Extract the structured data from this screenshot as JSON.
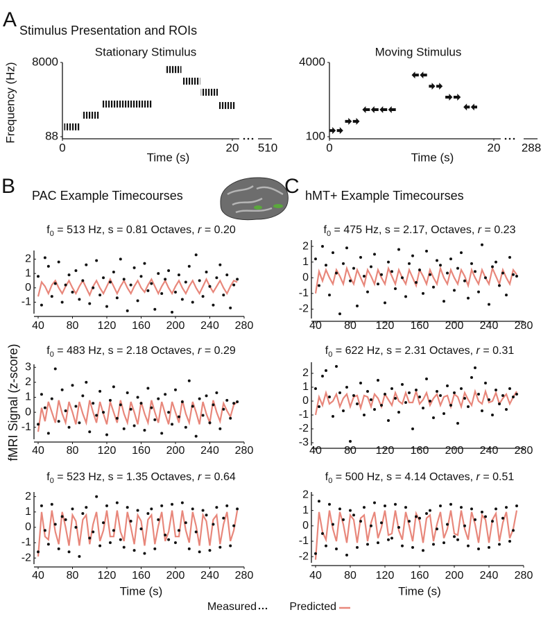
{
  "figure": {
    "panels": [
      {
        "letter": "A",
        "title": "Stimulus Presentation and ROIs"
      },
      {
        "letter": "B",
        "title": "PAC Example Timecourses"
      },
      {
        "letter": "C",
        "title": "hMT+ Example Timecourses"
      }
    ],
    "ylabel": "fMRI Signal (z-score)",
    "legend": [
      {
        "name": "Measured",
        "color": "#111111"
      },
      {
        "name": "Predicted",
        "color": "#e8877b"
      }
    ]
  },
  "chart_data": [
    {
      "type": "stimulus",
      "title": "Stationary Stimulus",
      "ylabel": "Frequency (Hz)",
      "xlabel": "Time (s)",
      "log_y": true,
      "ylim": [
        88,
        8000
      ],
      "yticks": [
        88,
        8000
      ],
      "xlim": [
        0,
        20
      ],
      "xticks": [
        0,
        20
      ],
      "break_tick": 510,
      "marker": "bars",
      "start": [
        0.2,
        2.3,
        4.6,
        12.1,
        14.2,
        16.3,
        18.4
      ],
      "end": [
        2.0,
        4.3,
        10.6,
        14.0,
        16.2,
        18.3,
        20.4
      ],
      "values": [
        160,
        325,
        640,
        5200,
        2570,
        1310,
        585
      ]
    },
    {
      "type": "stimulus",
      "title": "Moving Stimulus",
      "xlabel": "Time (s)",
      "log_y": true,
      "ylim": [
        100,
        4000
      ],
      "yticks": [
        100,
        4000
      ],
      "xlim": [
        0,
        20
      ],
      "xticks": [
        0,
        20
      ],
      "break_tick": 288,
      "marker": "arrows",
      "start": [
        0,
        1.9,
        4.0,
        10.0,
        12.1,
        14.1,
        16.3
      ],
      "end": [
        1.8,
        3.8,
        8.2,
        12.0,
        13.9,
        16.1,
        18.1
      ],
      "values": [
        136,
        214,
        384,
        2140,
        1230,
        715,
        437
      ],
      "direction": [
        "right",
        "right",
        "left",
        "left",
        "right",
        "right",
        "left"
      ]
    },
    {
      "type": "timecourse",
      "title": "f0 = 513 Hz, s = 0.81 Octaves, r = 0.20",
      "xlim": [
        40,
        280
      ],
      "xticks": [
        40,
        80,
        120,
        160,
        200,
        240,
        280
      ],
      "ylim": [
        -1.8,
        2.6
      ],
      "yticks": [
        -1,
        0,
        1,
        2
      ],
      "x": [
        40,
        44,
        48,
        52,
        56,
        60,
        64,
        68,
        72,
        76,
        80,
        84,
        88,
        92,
        96,
        100,
        104,
        108,
        112,
        116,
        120,
        124,
        128,
        132,
        136,
        140,
        144,
        148,
        152,
        156,
        160,
        164,
        168,
        172,
        176,
        180,
        184,
        188,
        192,
        196,
        200,
        204,
        208,
        212,
        216,
        220,
        224,
        228,
        232,
        236,
        240,
        244,
        248,
        252,
        256,
        260,
        264,
        268,
        272
      ],
      "measured": [
        0.8,
        -1.2,
        2.1,
        1.5,
        -0.6,
        0.3,
        1.8,
        -1.0,
        0.2,
        0.9,
        -0.3,
        1.2,
        -0.8,
        0.5,
        1.6,
        -1.1,
        0.0,
        1.9,
        -0.5,
        0.7,
        -1.3,
        0.4,
        1.1,
        -0.7,
        2.0,
        0.6,
        -1.6,
        0.2,
        1.4,
        -0.9,
        0.8,
        1.7,
        -0.2,
        0.3,
        -1.5,
        1.0,
        -0.4,
        0.6,
        1.2,
        -1.7,
        -0.3,
        0.9,
        -0.8,
        0.4,
        1.5,
        -1.0,
        2.3,
        0.5,
        -0.6,
        1.1,
        0.1,
        -1.2,
        0.7,
        1.6,
        -0.5,
        0.9,
        -1.4,
        0.2,
        0.6
      ],
      "predicted": [
        -0.6,
        0.4,
        0.1,
        -0.4,
        0.2,
        0.5,
        0.0,
        -0.4,
        0.1,
        0.5,
        0.0,
        -0.4,
        0.1,
        0.5,
        0.0,
        -0.5,
        0.1,
        0.5,
        0.0,
        -0.4,
        0.1,
        0.6,
        0.1,
        -0.4,
        0.1,
        0.5,
        0.0,
        -0.4,
        0.1,
        0.5,
        0.0,
        -0.3,
        0.2,
        0.6,
        0.1,
        -0.4,
        0.1,
        0.5,
        0.0,
        -0.4,
        0.1,
        0.5,
        0.0,
        -0.4,
        0.1,
        0.5,
        0.0,
        -0.4,
        0.1,
        0.6,
        0.1,
        -0.3,
        0.1,
        0.5,
        0.0,
        -0.4,
        0.1,
        0.5,
        0.4
      ]
    },
    {
      "type": "timecourse",
      "title": "f0 = 475 Hz, s = 2.17, Octaves, r = 0.23",
      "xlim": [
        40,
        280
      ],
      "xticks": [
        40,
        80,
        120,
        160,
        200,
        240,
        280
      ],
      "ylim": [
        -2.6,
        2.4
      ],
      "yticks": [
        -2,
        -1,
        0,
        1,
        2
      ],
      "x": [
        40,
        44,
        48,
        52,
        56,
        60,
        64,
        68,
        72,
        76,
        80,
        84,
        88,
        92,
        96,
        100,
        104,
        108,
        112,
        116,
        120,
        124,
        128,
        132,
        136,
        140,
        144,
        148,
        152,
        156,
        160,
        164,
        168,
        172,
        176,
        180,
        184,
        188,
        192,
        196,
        200,
        204,
        208,
        212,
        216,
        220,
        224,
        228,
        232,
        236,
        240,
        244,
        248,
        252,
        256,
        260,
        264,
        268,
        272
      ],
      "measured": [
        1.2,
        -0.5,
        2.0,
        0.8,
        -1.1,
        1.6,
        0.3,
        -2.3,
        0.9,
        1.9,
        -0.2,
        0.6,
        -1.8,
        1.3,
        0.1,
        -0.9,
        0.7,
        1.5,
        -0.4,
        0.2,
        -1.6,
        1.0,
        0.4,
        -0.7,
        1.8,
        0.0,
        -1.2,
        0.9,
        1.4,
        -0.3,
        0.5,
        -1.0,
        1.7,
        0.2,
        -0.6,
        1.1,
        0.8,
        -1.5,
        0.3,
        1.2,
        -0.8,
        0.6,
        1.6,
        -0.2,
        -1.3,
        0.9,
        0.4,
        -0.9,
        2.1,
        0.0,
        -1.7,
        0.7,
        1.0,
        -0.5,
        0.3,
        -1.1,
        1.3,
        0.2,
        0.1
      ],
      "predicted": [
        -1.0,
        0.4,
        -0.2,
        0.5,
        0.0,
        -0.4,
        0.5,
        0.1,
        -0.4,
        0.6,
        0.0,
        -0.4,
        0.5,
        0.0,
        -0.5,
        0.5,
        0.1,
        -0.4,
        0.5,
        0.0,
        -0.4,
        0.6,
        0.1,
        -0.4,
        0.5,
        0.0,
        -0.4,
        0.5,
        0.0,
        -0.5,
        0.5,
        0.1,
        -0.4,
        0.5,
        0.0,
        -0.4,
        0.6,
        0.0,
        -0.4,
        0.5,
        0.0,
        -0.4,
        0.5,
        0.1,
        -0.5,
        0.5,
        0.0,
        -0.4,
        0.5,
        0.0,
        -0.4,
        0.6,
        0.1,
        -0.4,
        0.5,
        0.0,
        -0.4,
        0.5,
        0.2
      ]
    },
    {
      "type": "timecourse",
      "title": "f0 = 483 Hz, s = 2.18 Octaves, r = 0.29",
      "xlim": [
        40,
        280
      ],
      "xticks": [
        40,
        80,
        120,
        160,
        200,
        240,
        280
      ],
      "ylim": [
        -1.8,
        3.2
      ],
      "yticks": [
        -1,
        0,
        1,
        2,
        3
      ],
      "x": [
        40,
        44,
        48,
        52,
        56,
        60,
        64,
        68,
        72,
        76,
        80,
        84,
        88,
        92,
        96,
        100,
        104,
        108,
        112,
        116,
        120,
        124,
        128,
        132,
        136,
        140,
        144,
        148,
        152,
        156,
        160,
        164,
        168,
        172,
        176,
        180,
        184,
        188,
        192,
        196,
        200,
        204,
        208,
        212,
        216,
        220,
        224,
        228,
        232,
        236,
        240,
        244,
        248,
        252,
        256,
        260,
        264,
        268,
        272
      ],
      "measured": [
        -0.8,
        1.2,
        0.3,
        -1.4,
        0.9,
        2.9,
        -0.6,
        1.5,
        0.1,
        -1.0,
        1.8,
        0.4,
        -0.7,
        1.1,
        2.0,
        -1.3,
        0.6,
        -0.2,
        1.4,
        0.0,
        -1.5,
        0.8,
        1.7,
        -0.4,
        0.5,
        -1.1,
        1.3,
        0.2,
        -0.9,
        1.0,
        0.6,
        -1.2,
        1.6,
        0.3,
        -0.5,
        0.9,
        -1.4,
        1.2,
        0.0,
        -0.8,
        1.5,
        -0.3,
        0.7,
        -1.0,
        2.1,
        0.4,
        -1.6,
        0.9,
        -0.2,
        1.1,
        -0.7,
        0.5,
        1.3,
        -1.1,
        0.2,
        0.8,
        -0.4,
        0.6,
        0.7
      ],
      "predicted": [
        -1.3,
        0.3,
        -0.6,
        0.7,
        0.0,
        -0.7,
        0.8,
        -0.1,
        -0.7,
        0.7,
        0.0,
        -0.8,
        0.7,
        -0.1,
        -0.7,
        0.8,
        0.0,
        -0.7,
        0.7,
        -0.1,
        -0.8,
        0.7,
        0.0,
        -0.7,
        0.8,
        -0.1,
        -0.7,
        0.7,
        0.0,
        -0.8,
        0.7,
        -0.1,
        -0.7,
        0.8,
        0.0,
        -0.7,
        0.7,
        -0.1,
        -0.8,
        0.7,
        0.0,
        -0.7,
        0.8,
        -0.1,
        -0.7,
        0.7,
        0.0,
        -0.8,
        0.7,
        -0.1,
        -0.7,
        0.8,
        0.0,
        -0.6,
        0.6,
        0.1,
        -0.3,
        0.5,
        0.7
      ]
    },
    {
      "type": "timecourse",
      "title": "f0 = 622 Hz, s = 2.31 Octaves, r = 0.31",
      "xlim": [
        40,
        280
      ],
      "xticks": [
        40,
        80,
        120,
        160,
        200,
        240,
        280
      ],
      "ylim": [
        -3.2,
        2.8
      ],
      "yticks": [
        -3,
        -2,
        -1,
        0,
        1,
        2
      ],
      "x": [
        40,
        44,
        48,
        52,
        56,
        60,
        64,
        68,
        72,
        76,
        80,
        84,
        88,
        92,
        96,
        100,
        104,
        108,
        112,
        116,
        120,
        124,
        128,
        132,
        136,
        140,
        144,
        148,
        152,
        156,
        160,
        164,
        168,
        172,
        176,
        180,
        184,
        188,
        192,
        196,
        200,
        204,
        208,
        212,
        216,
        220,
        224,
        228,
        232,
        236,
        240,
        244,
        248,
        252,
        256,
        260,
        264,
        268,
        272
      ],
      "measured": [
        0.9,
        -0.4,
        1.8,
        2.2,
        0.3,
        -1.1,
        2.5,
        0.6,
        -0.7,
        1.0,
        -2.9,
        0.4,
        -0.2,
        1.3,
        -1.0,
        0.7,
        0.1,
        -0.6,
        1.5,
        -0.3,
        0.5,
        -1.4,
        0.9,
        0.2,
        -0.8,
        1.2,
        -0.1,
        0.6,
        -2.0,
        0.8,
        0.3,
        -0.5,
        1.6,
        0.0,
        -1.2,
        0.7,
        0.4,
        -0.9,
        1.1,
        -0.3,
        0.6,
        -1.6,
        0.9,
        0.2,
        -0.4,
        1.7,
        2.4,
        0.5,
        -0.7,
        1.3,
        0.1,
        -1.0,
        0.8,
        -0.2,
        0.4,
        -0.6,
        0.9,
        0.3,
        0.5
      ],
      "predicted": [
        -1.0,
        0.3,
        -0.3,
        0.6,
        -0.2,
        0.0,
        0.5,
        -0.4,
        0.2,
        0.5,
        -0.4,
        0.3,
        0.4,
        -0.5,
        0.4,
        0.3,
        -0.4,
        0.5,
        0.2,
        -0.4,
        0.5,
        0.1,
        -0.3,
        0.6,
        0.0,
        -0.2,
        0.6,
        -0.1,
        -0.1,
        0.7,
        -0.2,
        0.1,
        0.6,
        -0.3,
        0.2,
        0.5,
        -0.3,
        0.3,
        0.4,
        -0.4,
        0.5,
        0.3,
        -0.4,
        0.6,
        0.1,
        -0.3,
        0.7,
        0.0,
        -0.2,
        0.7,
        -0.1,
        0.0,
        0.6,
        -0.2,
        0.2,
        0.5,
        -0.2,
        0.3,
        0.7
      ]
    },
    {
      "type": "timecourse",
      "title": "f0 = 523 Hz, s = 1.35 Octaves, r = 0.64",
      "xlabel": "Time (s)",
      "xlim": [
        40,
        280
      ],
      "xticks": [
        40,
        80,
        120,
        160,
        200,
        240,
        280
      ],
      "ylim": [
        -2.4,
        2.3
      ],
      "yticks": [
        -2,
        -1,
        0,
        1,
        2
      ],
      "x": [
        40,
        44,
        48,
        52,
        56,
        60,
        64,
        68,
        72,
        76,
        80,
        84,
        88,
        92,
        96,
        100,
        104,
        108,
        112,
        116,
        120,
        124,
        128,
        132,
        136,
        140,
        144,
        148,
        152,
        156,
        160,
        164,
        168,
        172,
        176,
        180,
        184,
        188,
        192,
        196,
        200,
        204,
        208,
        212,
        216,
        220,
        224,
        228,
        232,
        236,
        240,
        244,
        248,
        252,
        256,
        260,
        264,
        268,
        272
      ],
      "measured": [
        -1.6,
        1.4,
        -0.2,
        -1.1,
        1.5,
        0.2,
        -1.4,
        0.7,
        0.5,
        -1.6,
        1.2,
        0.0,
        -1.9,
        0.9,
        1.3,
        -0.7,
        -0.3,
        2.0,
        -1.2,
        0.3,
        1.4,
        -1.0,
        -0.2,
        1.6,
        -0.8,
        -1.3,
        1.3,
        0.4,
        -1.5,
        1.1,
        -0.1,
        -1.7,
        0.9,
        1.2,
        -1.4,
        0.5,
        1.4,
        -0.5,
        -0.8,
        1.5,
        -1.0,
        -0.2,
        1.6,
        0.3,
        -1.4,
        1.2,
        -0.3,
        -1.6,
        1.1,
        0.8,
        -1.5,
        0.2,
        1.3,
        -1.3,
        0.6,
        1.4,
        -1.2,
        0.1,
        1.2
      ],
      "predicted": [
        -1.9,
        1.0,
        -0.6,
        -0.8,
        1.1,
        -0.3,
        -1.1,
        1.0,
        0.0,
        -1.2,
        0.8,
        0.4,
        -1.2,
        0.5,
        0.8,
        -1.1,
        0.2,
        1.0,
        -0.9,
        -0.2,
        1.1,
        -0.6,
        -0.6,
        1.1,
        -0.3,
        -0.9,
        1.0,
        0.0,
        -1.1,
        0.8,
        0.4,
        -1.2,
        0.5,
        0.8,
        -1.1,
        0.1,
        1.0,
        -0.9,
        -0.3,
        1.1,
        -0.6,
        -0.6,
        1.1,
        -0.2,
        -1.0,
        1.0,
        0.1,
        -1.2,
        0.8,
        0.4,
        -1.2,
        0.5,
        0.8,
        -1.1,
        0.2,
        1.0,
        -0.9,
        -0.2,
        1.1
      ]
    },
    {
      "type": "timecourse",
      "title": "f0 = 500 Hz, s = 4.14 Octaves, r = 0.51",
      "xlabel": "Time (s)",
      "xlim": [
        40,
        280
      ],
      "xticks": [
        40,
        80,
        120,
        160,
        200,
        240,
        280
      ],
      "ylim": [
        -2.4,
        2.2
      ],
      "yticks": [
        -2,
        -1,
        0,
        1,
        2
      ],
      "x": [
        40,
        44,
        48,
        52,
        56,
        60,
        64,
        68,
        72,
        76,
        80,
        84,
        88,
        92,
        96,
        100,
        104,
        108,
        112,
        116,
        120,
        124,
        128,
        132,
        136,
        140,
        144,
        148,
        152,
        156,
        160,
        164,
        168,
        172,
        176,
        180,
        184,
        188,
        192,
        196,
        200,
        204,
        208,
        212,
        216,
        220,
        224,
        228,
        232,
        236,
        240,
        244,
        248,
        252,
        256,
        260,
        264,
        268,
        272
      ],
      "measured": [
        -1.8,
        1.6,
        -0.5,
        -1.3,
        1.4,
        0.1,
        -1.5,
        1.1,
        0.4,
        -1.9,
        1.0,
        0.7,
        -1.4,
        0.3,
        1.2,
        -1.2,
        0.0,
        1.5,
        -1.1,
        0.2,
        1.3,
        -0.9,
        -0.8,
        1.4,
        -0.1,
        -1.3,
        1.2,
        0.3,
        -1.4,
        0.6,
        0.5,
        -1.6,
        0.8,
        1.0,
        -1.2,
        -0.2,
        1.3,
        -1.1,
        0.1,
        1.4,
        -0.7,
        -0.9,
        1.2,
        0.0,
        -1.3,
        1.1,
        0.4,
        -1.5,
        0.9,
        0.6,
        -1.4,
        0.3,
        1.1,
        -1.2,
        0.5,
        1.2,
        -1.0,
        -0.3,
        1.3
      ],
      "predicted": [
        -2.2,
        0.9,
        -0.4,
        -0.9,
        1.0,
        -0.2,
        -1.0,
        0.9,
        0.1,
        -1.1,
        0.7,
        0.4,
        -1.1,
        0.5,
        0.7,
        -1.0,
        0.2,
        0.9,
        -0.8,
        -0.1,
        1.0,
        -0.6,
        -0.5,
        1.0,
        -0.3,
        -0.9,
        0.9,
        0.0,
        -1.0,
        0.8,
        0.3,
        -1.1,
        0.5,
        0.7,
        -1.0,
        0.1,
        0.9,
        -0.8,
        -0.2,
        1.0,
        -0.5,
        -0.6,
        1.0,
        -0.2,
        -0.9,
        0.9,
        0.1,
        -1.1,
        0.7,
        0.4,
        -1.1,
        0.4,
        0.8,
        -1.0,
        0.2,
        0.9,
        -0.8,
        -0.2,
        1.0
      ]
    }
  ]
}
